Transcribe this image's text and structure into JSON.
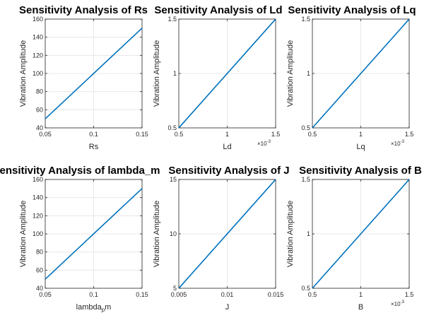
{
  "figure": {
    "line_color": "#0072BD",
    "chart_data": [
      {
        "type": "line",
        "title": "Sensitivity Analysis of Rs",
        "xlabel": "Rs",
        "ylabel": "Vibration Amplitude",
        "xlim": [
          0.05,
          0.15
        ],
        "ylim": [
          40,
          160
        ],
        "xticks": [
          "0.05",
          "0.1",
          "0.15"
        ],
        "yticks": [
          "40",
          "60",
          "80",
          "100",
          "120",
          "140",
          "160"
        ],
        "x_multiplier": "",
        "x": [
          0.05,
          0.15
        ],
        "y": [
          50,
          150
        ]
      },
      {
        "type": "line",
        "title": "Sensitivity Analysis of Ld",
        "xlabel": "Ld",
        "ylabel": "Vibration Amplitude",
        "xlim": [
          0.5,
          1.5
        ],
        "ylim": [
          0.5,
          1.5
        ],
        "xticks": [
          "0.5",
          "1",
          "1.5"
        ],
        "yticks": [
          "0.5",
          "1",
          "1.5"
        ],
        "x_multiplier": "×10",
        "x_multiplier_exp": "-3",
        "x": [
          0.5,
          1.5
        ],
        "y": [
          0.5,
          1.5
        ]
      },
      {
        "type": "line",
        "title": "Sensitivity Analysis of Lq",
        "xlabel": "Lq",
        "ylabel": "Vibration Amplitude",
        "xlim": [
          0.5,
          1.5
        ],
        "ylim": [
          0.5,
          1.5
        ],
        "xticks": [
          "0.5",
          "1",
          "1.5"
        ],
        "yticks": [
          "0.5",
          "1",
          "1.5"
        ],
        "x_multiplier": "×10",
        "x_multiplier_exp": "-3",
        "x": [
          0.5,
          1.5
        ],
        "y": [
          0.5,
          1.5
        ]
      },
      {
        "type": "line",
        "title": "Sensitivity Analysis of lambda_m",
        "xlabel_main": "lambda",
        "xlabel_sub": "p",
        "xlabel_rest": "m",
        "ylabel": "Vibration Amplitude",
        "xlim": [
          0.05,
          0.15
        ],
        "ylim": [
          40,
          160
        ],
        "xticks": [
          "0.05",
          "0.1",
          "0.15"
        ],
        "yticks": [
          "40",
          "60",
          "80",
          "100",
          "120",
          "140",
          "160"
        ],
        "x_multiplier": "",
        "x": [
          0.05,
          0.15
        ],
        "y": [
          50,
          150
        ]
      },
      {
        "type": "line",
        "title": "Sensitivity Analysis of J",
        "xlabel": "J",
        "ylabel": "Vibration Amplitude",
        "xlim": [
          0.005,
          0.015
        ],
        "ylim": [
          5,
          15
        ],
        "xticks": [
          "0.005",
          "0.01",
          "0.015"
        ],
        "yticks": [
          "5",
          "10",
          "15"
        ],
        "x_multiplier": "",
        "x": [
          0.005,
          0.015
        ],
        "y": [
          5,
          15
        ]
      },
      {
        "type": "line",
        "title": "Sensitivity Analysis of B",
        "xlabel": "B",
        "ylabel": "Vibration Amplitude",
        "xlim": [
          0.5,
          1.5
        ],
        "ylim": [
          0.5,
          1.5
        ],
        "xticks": [
          "0.5",
          "1",
          "1.5"
        ],
        "yticks": [
          "0.5",
          "1",
          "1.5"
        ],
        "x_multiplier": "×10",
        "x_multiplier_exp": "-3",
        "x": [
          0.5,
          1.5
        ],
        "y": [
          0.5,
          1.5
        ]
      }
    ]
  }
}
